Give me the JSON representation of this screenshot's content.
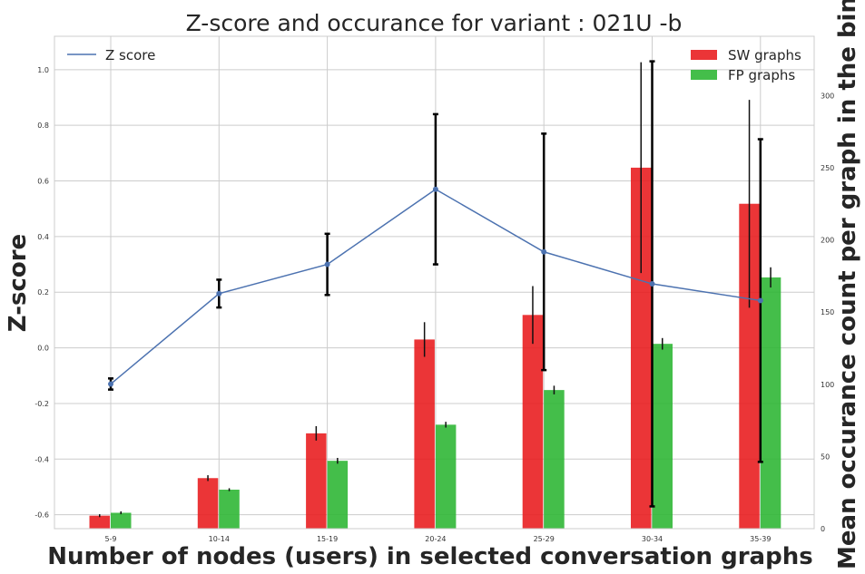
{
  "chart_data": {
    "type": "bar",
    "title": "Z-score and occurance for variant : 021U -b",
    "xlabel": "Number of nodes (users) in selected conversation graphs",
    "ylabel": "Z-score",
    "y2label": "Mean occurance count per graph in the bin",
    "categories": [
      "5-9",
      "10-14",
      "15-19",
      "20-24",
      "25-29",
      "30-34",
      "35-39"
    ],
    "ylim": [
      -0.65,
      1.12
    ],
    "y2lim": [
      0,
      341
    ],
    "yticks": [
      "-0.6",
      "-0.4",
      "-0.2",
      "0.0",
      "0.2",
      "0.4",
      "0.6",
      "0.8",
      "1.0"
    ],
    "y2ticks": [
      "0",
      "50",
      "100",
      "150",
      "200",
      "250",
      "300"
    ],
    "grid": true,
    "legend_left": "top-left",
    "legend_right": "top-right",
    "series": [
      {
        "name": "Z score",
        "kind": "line",
        "axis": "left",
        "color": "#4c72b0",
        "values": [
          -0.13,
          0.195,
          0.3,
          0.57,
          0.345,
          0.23,
          0.17
        ],
        "err_low": [
          0.02,
          0.05,
          0.11,
          0.27,
          0.425,
          0.8,
          0.58
        ],
        "err_high": [
          0.02,
          0.05,
          0.11,
          0.27,
          0.425,
          0.8,
          0.58
        ]
      },
      {
        "name": "SW graphs",
        "kind": "bar",
        "axis": "right",
        "color": "#e8191b",
        "values": [
          9,
          35,
          66,
          131,
          148,
          250,
          225
        ],
        "err": [
          1,
          2,
          5,
          12,
          20,
          73,
          72
        ]
      },
      {
        "name": "FP graphs",
        "kind": "bar",
        "axis": "right",
        "color": "#2ab531",
        "values": [
          11,
          27,
          47,
          72,
          96,
          128,
          174
        ],
        "err": [
          1,
          1,
          2,
          2,
          3,
          4,
          7
        ]
      }
    ]
  }
}
